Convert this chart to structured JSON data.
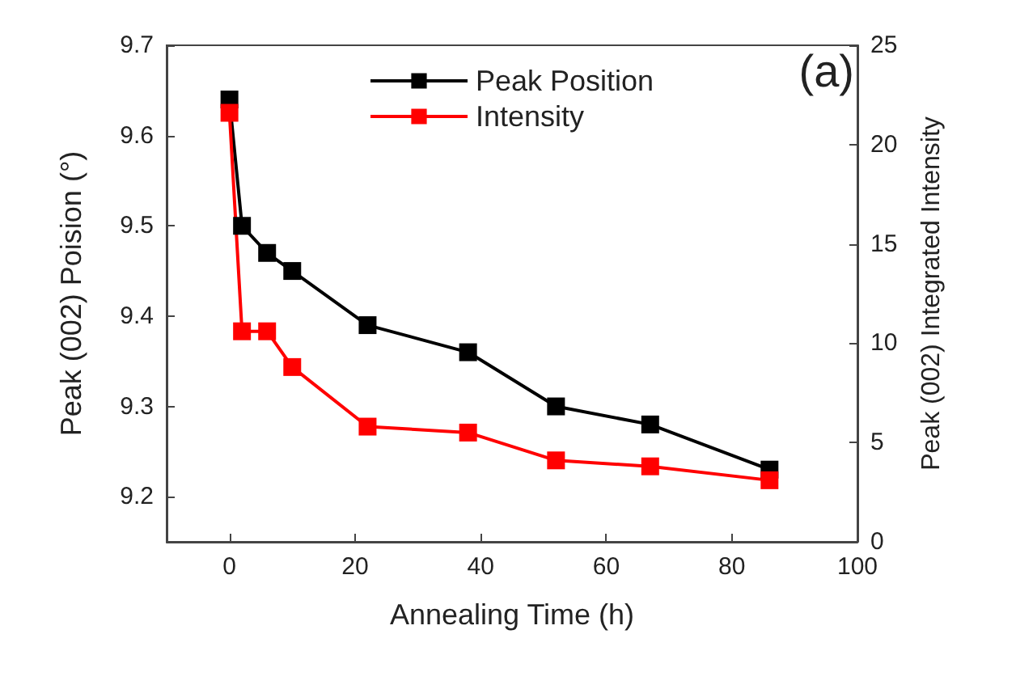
{
  "chart_data": {
    "type": "line",
    "xlabel": "Annealing Time (h)",
    "ylabel": "Peak (002) Poision (°)",
    "y2label": "Peak (002) Integrated Intensity",
    "x": [
      0,
      2,
      6,
      10,
      22,
      38,
      52,
      67,
      86
    ],
    "series": [
      {
        "name": "Peak Position",
        "color": "#000000",
        "values": [
          9.64,
          9.5,
          9.47,
          9.45,
          9.39,
          9.36,
          9.3,
          9.28,
          9.23
        ]
      },
      {
        "name": "Intensity",
        "color": "#ff0000",
        "axis": "y2",
        "values": [
          21.6,
          10.6,
          10.6,
          8.8,
          5.8,
          5.5,
          4.1,
          3.8,
          3.1
        ]
      }
    ],
    "xlim": [
      -10,
      100
    ],
    "xticks": [
      0,
      20,
      40,
      60,
      80,
      100
    ],
    "ylim": [
      9.15,
      9.7
    ],
    "yticks": [
      9.2,
      9.3,
      9.4,
      9.5,
      9.6,
      9.7
    ],
    "y2lim": [
      0,
      25
    ],
    "y2ticks": [
      0,
      5,
      10,
      15,
      20,
      25
    ],
    "annotations": [
      "(a)"
    ],
    "legend": "top",
    "grid": false,
    "marker": "square",
    "line_style": "solid"
  }
}
